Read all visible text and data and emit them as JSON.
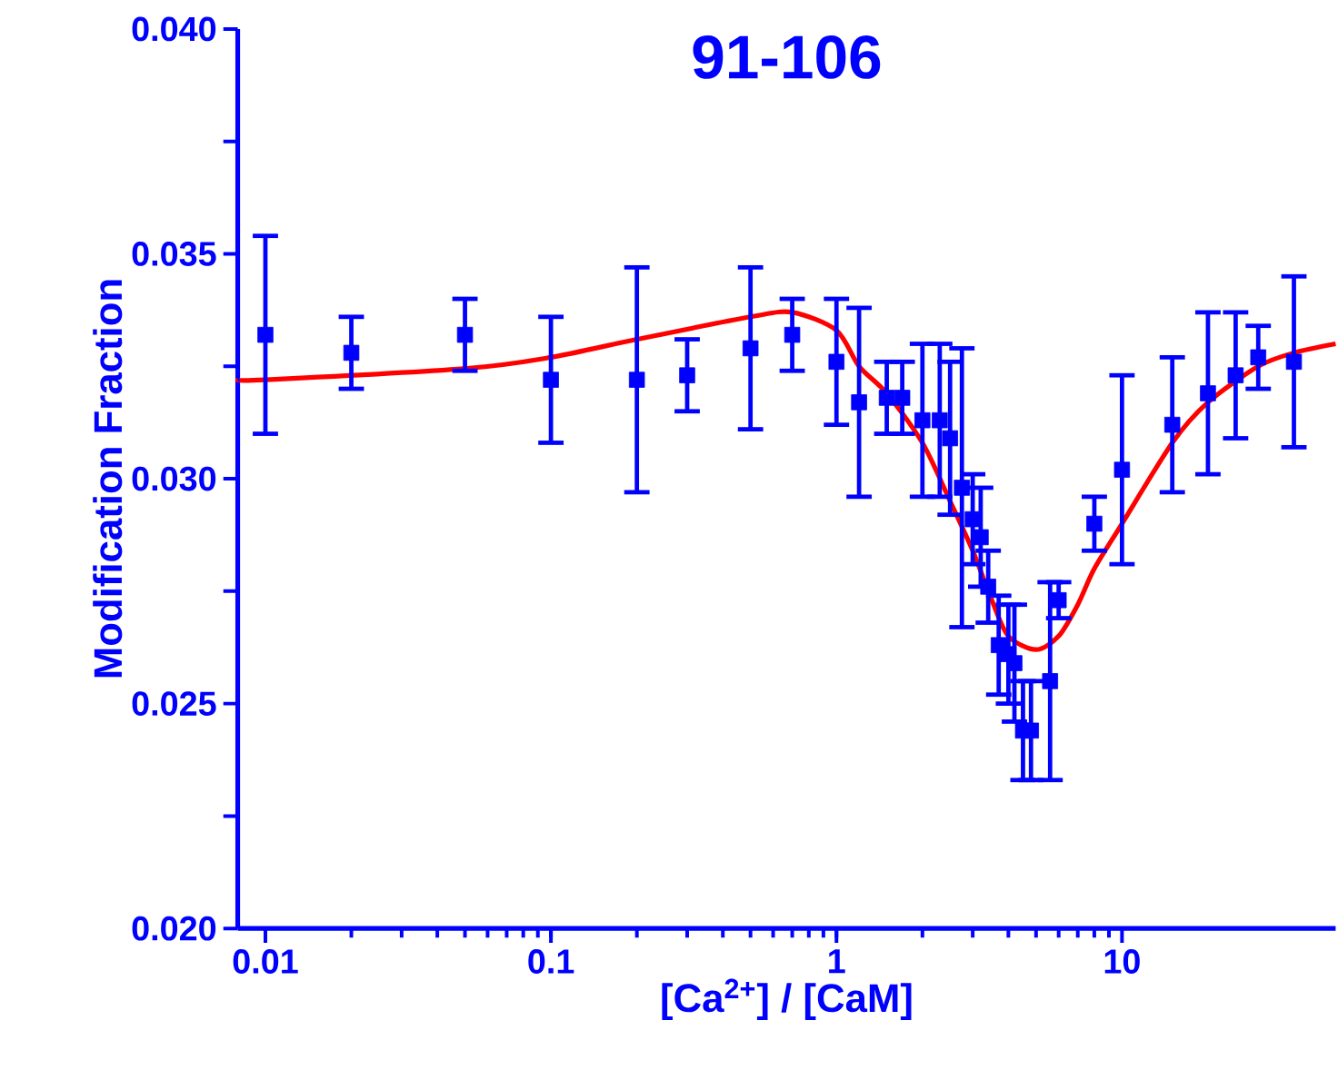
{
  "chart_data": {
    "type": "scatter",
    "title": "91-106",
    "xlabel": "[Ca$^{2+}$] / [CaM]",
    "ylabel": "Modification Fraction",
    "log": "x",
    "xlim": [
      0.008,
      56
    ],
    "ylim": [
      0.02,
      0.04
    ],
    "xticks": [
      0.01,
      0.1,
      1,
      10
    ],
    "yticks": [
      {
        "value": 0.02,
        "label": "0.020"
      },
      {
        "value": 0.0225,
        "label": null
      },
      {
        "value": 0.025,
        "label": "0.025"
      },
      {
        "value": 0.0275,
        "label": null
      },
      {
        "value": 0.03,
        "label": "0.030"
      },
      {
        "value": 0.0325,
        "label": null
      },
      {
        "value": 0.035,
        "label": "0.035"
      },
      {
        "value": 0.0375,
        "label": null
      },
      {
        "value": 0.04,
        "label": "0.040"
      }
    ],
    "grid": false,
    "series": [
      {
        "marker": "square",
        "color": "#0000ff",
        "x": [
          0.01,
          0.02,
          0.05,
          0.1,
          0.2,
          0.3,
          0.5,
          0.7,
          1,
          1.2,
          1.5,
          1.7,
          2,
          2.3,
          2.5,
          2.75,
          3,
          3.2,
          3.4,
          3.7,
          4,
          4.2,
          4.5,
          4.8,
          5.6,
          6,
          8,
          10,
          15,
          20,
          25,
          30,
          40
        ],
        "values": [
          0.0332,
          0.0328,
          0.0332,
          0.0322,
          0.0322,
          0.0323,
          0.0329,
          0.0332,
          0.0326,
          0.0317,
          0.0318,
          0.0318,
          0.0313,
          0.0313,
          0.0309,
          0.0298,
          0.0291,
          0.0287,
          0.0276,
          0.0263,
          0.0261,
          0.0259,
          0.0244,
          0.0244,
          0.0255,
          0.0273,
          0.029,
          0.0302,
          0.0312,
          0.0319,
          0.0323,
          0.0327,
          0.0326
        ],
        "errors": [
          0.0022,
          0.0008,
          0.0008,
          0.0014,
          0.0025,
          0.0008,
          0.0018,
          0.0008,
          0.0014,
          0.0021,
          0.0008,
          0.0008,
          0.0017,
          0.0017,
          0.0017,
          0.0031,
          0.001,
          0.0011,
          0.0008,
          0.0011,
          0.0011,
          0.0013,
          0.0011,
          0.0011,
          0.0022,
          0.0004,
          0.0006,
          0.0021,
          0.0015,
          0.0018,
          0.0014,
          0.0007,
          0.0019
        ]
      },
      {
        "type": "line",
        "marker": "none",
        "color": "#ff0000",
        "x": [
          0.008,
          0.01,
          0.05,
          0.1,
          0.2,
          0.5,
          0.7,
          1,
          1.2,
          1.5,
          2,
          2.5,
          3,
          3.5,
          4,
          5,
          6,
          7,
          8,
          10,
          15,
          20,
          30,
          40,
          56
        ],
        "values": [
          0.0322,
          0.0322,
          0.03245,
          0.0327,
          0.0331,
          0.0336,
          0.0337,
          0.0333,
          0.0325,
          0.0319,
          0.0308,
          0.0295,
          0.0284,
          0.0273,
          0.0265,
          0.0262,
          0.0265,
          0.0272,
          0.028,
          0.029,
          0.0308,
          0.0317,
          0.0325,
          0.0328,
          0.033
        ]
      }
    ]
  }
}
